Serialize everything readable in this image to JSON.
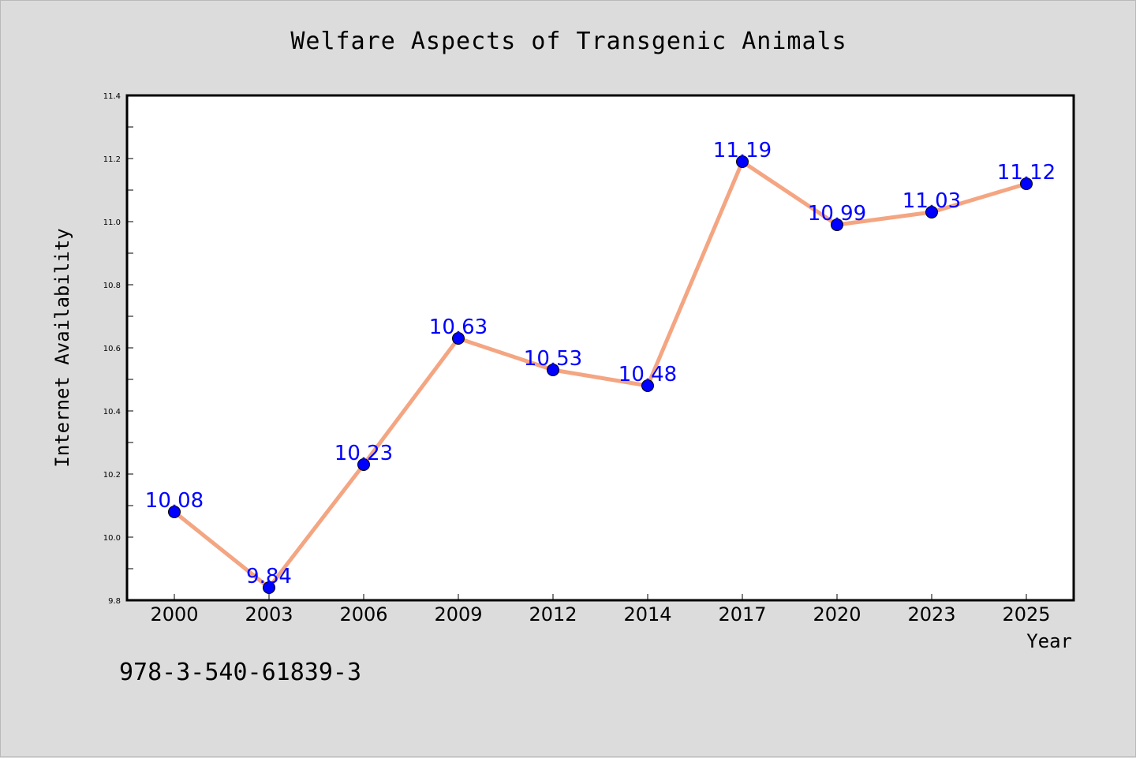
{
  "chart_data": {
    "type": "line",
    "title": "Welfare Aspects of Transgenic Animals",
    "xlabel": "Year",
    "ylabel": "Internet Availability",
    "categories": [
      "2000",
      "2003",
      "2006",
      "2009",
      "2012",
      "2014",
      "2017",
      "2020",
      "2023",
      "2025"
    ],
    "series": [
      {
        "values": [
          10.08,
          9.84,
          10.23,
          10.63,
          10.53,
          10.48,
          11.19,
          10.99,
          11.03,
          11.12
        ],
        "labels": [
          "10.08",
          "9.84",
          "10.23",
          "10.63",
          "10.53",
          "10.48",
          "11.19",
          "10.99",
          "11.03",
          "11.12"
        ],
        "line_color": "#f4a582",
        "marker_color": "#0000ff"
      }
    ],
    "ylim": [
      9.8,
      11.4
    ],
    "yticks": [
      "9.8",
      "10.0",
      "10.2",
      "10.4",
      "10.6",
      "10.8",
      "11.0",
      "11.2",
      "11.4"
    ],
    "grid": false,
    "legend": "none"
  },
  "footer": {
    "isbn": "978-3-540-61839-3"
  },
  "colors": {
    "background": "#dcdcdc",
    "plot_area": "#ffffff",
    "line": "#f4a582",
    "marker": "#0000ff",
    "data_label": "#0000ff"
  }
}
